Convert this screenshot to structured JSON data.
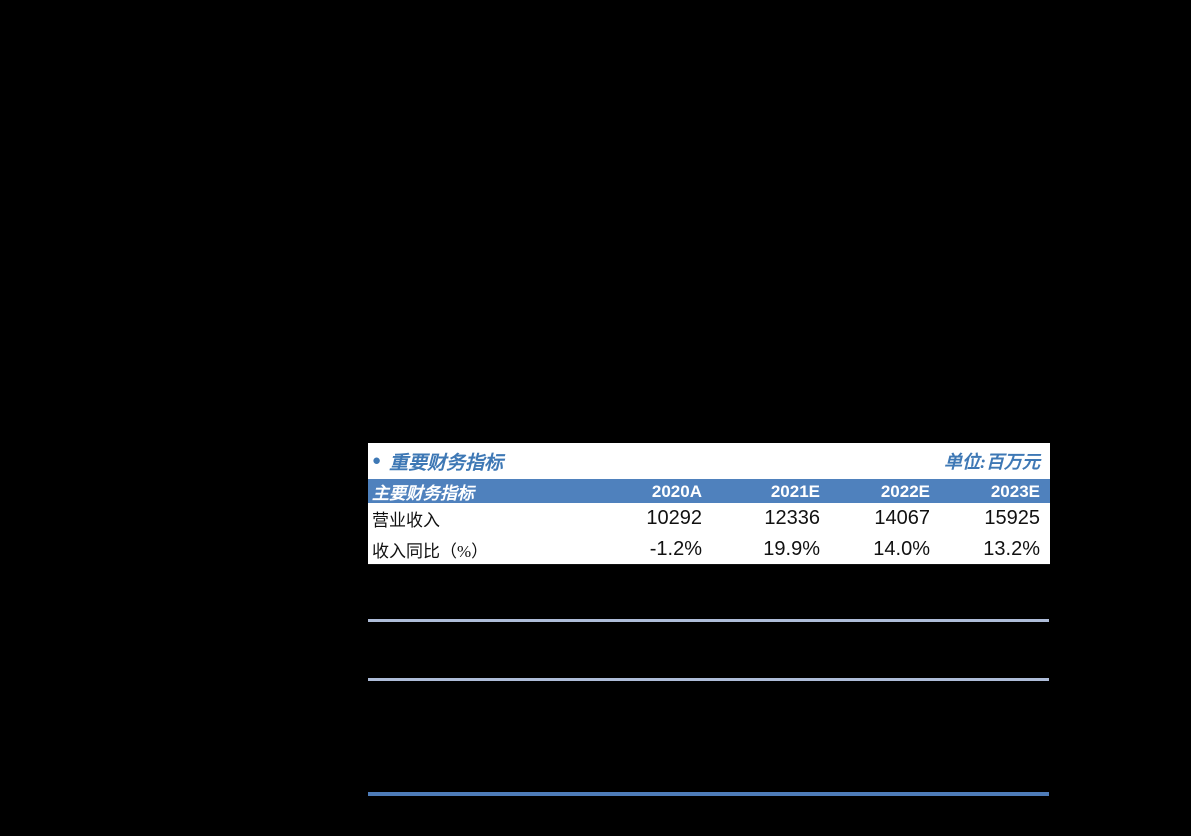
{
  "colors": {
    "page_background": "#000000",
    "table_background": "#ffffff",
    "header_background": "#4F81BD",
    "accent_text": "#3E78B5",
    "divider_light": "#AEBCD8",
    "divider_strong": "#4E7CB8"
  },
  "table": {
    "bullet": "●",
    "title": "重要财务指标",
    "unit": "单位:百万元",
    "columns": [
      "主要财务指标",
      "2020A",
      "2021E",
      "2022E",
      "2023E"
    ],
    "rows": [
      {
        "label": "营业收入",
        "values": [
          "10292",
          "12336",
          "14067",
          "15925"
        ]
      },
      {
        "label": "收入同比（%）",
        "values": [
          "-1.2%",
          "19.9%",
          "14.0%",
          "13.2%"
        ]
      }
    ]
  },
  "chart_data": {
    "type": "table",
    "title": "重要财务指标 (单位:百万元)",
    "categories": [
      "2020A",
      "2021E",
      "2022E",
      "2023E"
    ],
    "series": [
      {
        "name": "营业收入",
        "values": [
          10292,
          12336,
          14067,
          15925
        ]
      },
      {
        "name": "收入同比（%）",
        "values": [
          -1.2,
          19.9,
          14.0,
          13.2
        ]
      }
    ]
  }
}
